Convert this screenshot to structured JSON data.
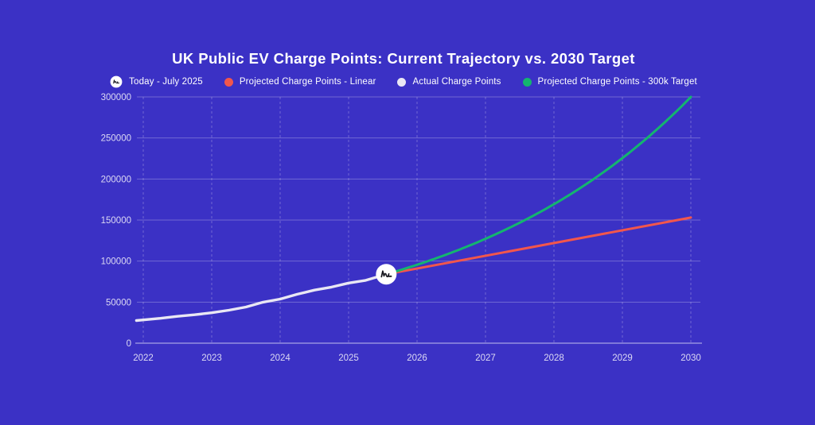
{
  "page": {
    "background": "#3b31c5"
  },
  "header": {
    "title": "UK Public EV Charge Points: Current Trajectory vs. 2030 Target"
  },
  "legend": {
    "items": [
      {
        "label": "Today - July 2025",
        "icon": "today-squiggle-marker",
        "color": "#ffffff"
      },
      {
        "label": "Projected Charge Points - Linear",
        "icon": "dot",
        "color": "#f2564c"
      },
      {
        "label": "Actual Charge Points",
        "icon": "dot",
        "color": "#e9e7f4"
      },
      {
        "label": "Projected Charge Points - 300k Target",
        "icon": "dot",
        "color": "#14b56f"
      }
    ]
  },
  "chart_data": {
    "type": "line",
    "title": "UK Public EV Charge Points: Current Trajectory vs. 2030 Target",
    "xlabel": "",
    "ylabel": "",
    "xlim": [
      2022,
      2030
    ],
    "ylim": [
      0,
      300000
    ],
    "x_ticks": [
      2022,
      2023,
      2024,
      2025,
      2026,
      2027,
      2028,
      2029,
      2030
    ],
    "y_ticks": [
      0,
      50000,
      100000,
      150000,
      200000,
      250000,
      300000
    ],
    "grid": true,
    "grid_style": "dashed",
    "legend_position": "top",
    "colors": {
      "background": "#3b31c5",
      "grid": "rgba(255,255,255,0.27)",
      "axis": "rgba(255,255,255,0.55)",
      "tick_text": "#dcd9f4"
    },
    "series": [
      {
        "name": "Actual Charge Points",
        "color": "#e9e7f4",
        "width": 3.4,
        "interpolation": "linear",
        "points": [
          [
            2021.9,
            27600
          ],
          [
            2022.0,
            28400
          ],
          [
            2022.25,
            30300
          ],
          [
            2022.5,
            32700
          ],
          [
            2022.75,
            34600
          ],
          [
            2023.0,
            37100
          ],
          [
            2023.25,
            40200
          ],
          [
            2023.5,
            44000
          ],
          [
            2023.75,
            49900
          ],
          [
            2024.0,
            53700
          ],
          [
            2024.25,
            59600
          ],
          [
            2024.5,
            64600
          ],
          [
            2024.75,
            68300
          ],
          [
            2025.0,
            73300
          ],
          [
            2025.25,
            76500
          ],
          [
            2025.55,
            84000
          ]
        ]
      },
      {
        "name": "Projected Charge Points - Linear",
        "color": "#f2564c",
        "width": 3,
        "interpolation": "linear",
        "points": [
          [
            2025.55,
            84000
          ],
          [
            2030,
            153000
          ]
        ]
      },
      {
        "name": "Projected Charge Points - 300k Target",
        "color": "#14b56f",
        "width": 3,
        "interpolation": "exponential",
        "points": [
          [
            2025.55,
            84000
          ],
          [
            2026,
            95500
          ],
          [
            2027,
            127200
          ],
          [
            2028,
            169300
          ],
          [
            2029,
            225500
          ],
          [
            2030,
            300000
          ]
        ]
      }
    ],
    "annotations": {
      "today": {
        "x": 2025.55,
        "y": 84000,
        "label": "Today - July 2025",
        "marker": "white-circle-squiggle"
      }
    }
  }
}
